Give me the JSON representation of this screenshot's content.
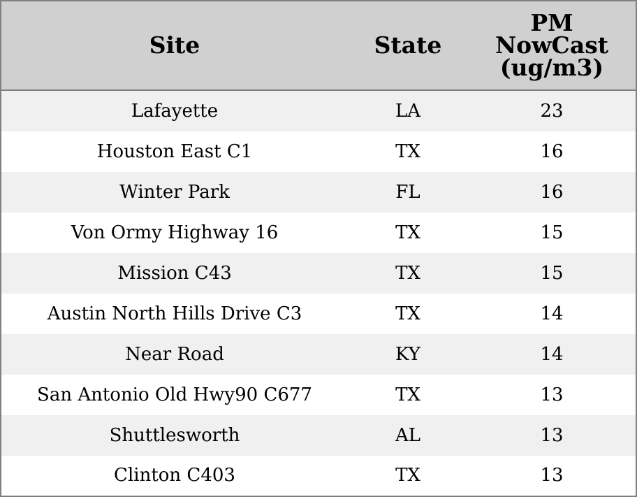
{
  "chart_data": {
    "type": "table",
    "columns": [
      "Site",
      "State",
      "PM NowCast (ug/m3)"
    ],
    "header_lines": {
      "site": [
        "Site"
      ],
      "state": [
        "State"
      ],
      "pm": [
        "PM",
        "NowCast",
        "(ug/m3)"
      ]
    },
    "rows": [
      {
        "site": "Lafayette",
        "state": "LA",
        "pm": "23"
      },
      {
        "site": "Houston East C1",
        "state": "TX",
        "pm": "16"
      },
      {
        "site": "Winter Park",
        "state": "FL",
        "pm": "16"
      },
      {
        "site": "Von Ormy Highway 16",
        "state": "TX",
        "pm": "15"
      },
      {
        "site": "Mission C43",
        "state": "TX",
        "pm": "15"
      },
      {
        "site": "Austin North Hills Drive C3",
        "state": "TX",
        "pm": "14"
      },
      {
        "site": "Near Road",
        "state": "KY",
        "pm": "14"
      },
      {
        "site": "San Antonio Old Hwy90 C677",
        "state": "TX",
        "pm": "13"
      },
      {
        "site": "Shuttlesworth",
        "state": "AL",
        "pm": "13"
      },
      {
        "site": "Clinton C403",
        "state": "TX",
        "pm": "13"
      }
    ],
    "colors": {
      "header_bg": "#d0d0d0",
      "row_alt_bg": "#f0f0f0",
      "row_bg": "#ffffff",
      "border": "#808080"
    }
  }
}
